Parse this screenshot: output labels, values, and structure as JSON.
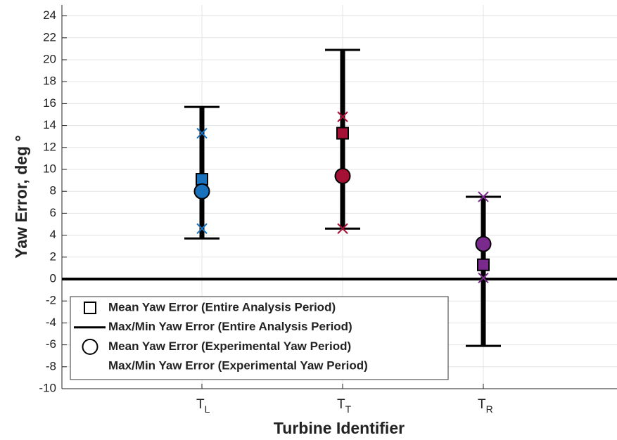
{
  "chart_data": {
    "type": "errorbar",
    "xlabel": "Turbine Identifier",
    "ylabel": "Yaw Error, deg °",
    "categories": [
      "T",
      "T",
      "T"
    ],
    "category_subscripts": [
      "L",
      "T",
      "R"
    ],
    "colors": [
      "#1a72bd",
      "#a51035",
      "#7a2a8c"
    ],
    "series": [
      {
        "name": "Mean Yaw Error (Entire Analysis Period)",
        "marker": "square",
        "values": [
          9.1,
          13.3,
          1.3
        ]
      },
      {
        "name": "Max/Min Yaw Error (Entire Analysis Period)",
        "marker": "bar",
        "max": [
          15.7,
          20.9,
          7.5
        ],
        "min": [
          3.7,
          4.6,
          -6.1
        ]
      },
      {
        "name": "Mean Yaw Error (Experimental Yaw Period)",
        "marker": "circle",
        "values": [
          8.0,
          9.4,
          3.2
        ]
      },
      {
        "name": "Max/Min Yaw Error (Experimental Yaw Period)",
        "marker": "x",
        "max": [
          13.3,
          14.8,
          7.5
        ],
        "min": [
          4.6,
          4.6,
          0.1
        ]
      }
    ],
    "reference_line": 0,
    "ylim": [
      -10,
      25
    ],
    "yticks": [
      -10,
      -8,
      -6,
      -4,
      -2,
      0,
      2,
      4,
      6,
      8,
      10,
      12,
      14,
      16,
      18,
      20,
      22,
      24
    ],
    "grid": true,
    "legend": "lower left"
  }
}
